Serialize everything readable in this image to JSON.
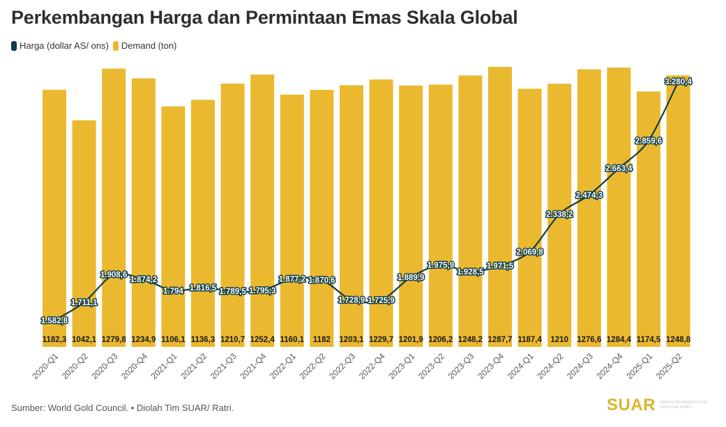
{
  "title": "Perkembangan Harga dan Permintaan Emas Skala Global",
  "legend": [
    {
      "label": "Harga (dollar AS/ ons)",
      "color": "#0d3b47"
    },
    {
      "label": "Demand (ton)",
      "color": "#ebb92f"
    }
  ],
  "footer": "Sumber: World Gold Council. • Diolah Tim SUAR/ Ratri.",
  "logo": {
    "word": "SUAR",
    "tagline": "SINERGI INFORMASI UNTUK KEMAJUAN BISNIS"
  },
  "chart_data": {
    "type": "bar+line",
    "title": "Perkembangan Harga dan Permintaan Emas Skala Global",
    "categories": [
      "2020-Q1",
      "2020-Q2",
      "2020-Q3",
      "2020-Q4",
      "2021-Q1",
      "2021-Q2",
      "2021-Q3",
      "2021-Q4",
      "2022-Q1",
      "2022-Q2",
      "2022-Q3",
      "2022-Q4",
      "2023-Q1",
      "2023-Q2",
      "2023-Q3",
      "2023-Q4",
      "2024-Q1",
      "2024-Q2",
      "2024-Q3",
      "2024-Q4",
      "2025-Q1",
      "2025-Q2"
    ],
    "series": [
      {
        "name": "Demand (ton)",
        "type": "bar",
        "color": "#ebb92f",
        "values": [
          1182.3,
          1042.1,
          1279.8,
          1234.9,
          1106.1,
          1136.3,
          1210.7,
          1252.4,
          1160.1,
          1182,
          1203.1,
          1229.7,
          1201.9,
          1206.2,
          1248.2,
          1287.7,
          1187.4,
          1210,
          1276.6,
          1284.4,
          1174.5,
          1248.8
        ],
        "labels": [
          "1182,3",
          "1042,1",
          "1279,8",
          "1234,9",
          "1106,1",
          "1136,3",
          "1210,7",
          "1252,4",
          "1160,1",
          "1182",
          "1203,1",
          "1229,7",
          "1201,9",
          "1206,2",
          "1248,2",
          "1287,7",
          "1187,4",
          "1210",
          "1276,6",
          "1284,4",
          "1174,5",
          "1248,8"
        ]
      },
      {
        "name": "Harga (dollar AS/ ons)",
        "type": "line",
        "color": "#0d3b47",
        "values": [
          1582.8,
          1711.1,
          1908.6,
          1874.2,
          1794,
          1816.5,
          1789.5,
          1795.3,
          1877.2,
          1870.6,
          1728.9,
          1725.9,
          1889.9,
          1975.9,
          1928.5,
          1971.5,
          2069.8,
          2338.2,
          2474.3,
          2663.4,
          2859.6,
          3280.4
        ],
        "labels": [
          "1.582,8",
          "1.711,1",
          "1.908,6",
          "1.874,2",
          "1.794",
          "1.816,5",
          "1.789,5",
          "1.795,3",
          "1.877,2",
          "1.870,6",
          "1.728,9",
          "1.725,9",
          "1.889,9",
          "1.975,9",
          "1.928,5",
          "1.971,5",
          "2.069,8",
          "2.338,2",
          "2.474,3",
          "2.663,4",
          "2.859,6",
          "3.280,4"
        ]
      }
    ],
    "bar_ylim": [
      0,
      1287.7
    ],
    "line_ylim": [
      1582.8,
      3280.4
    ],
    "grid": false,
    "legend_position": "top-left"
  }
}
